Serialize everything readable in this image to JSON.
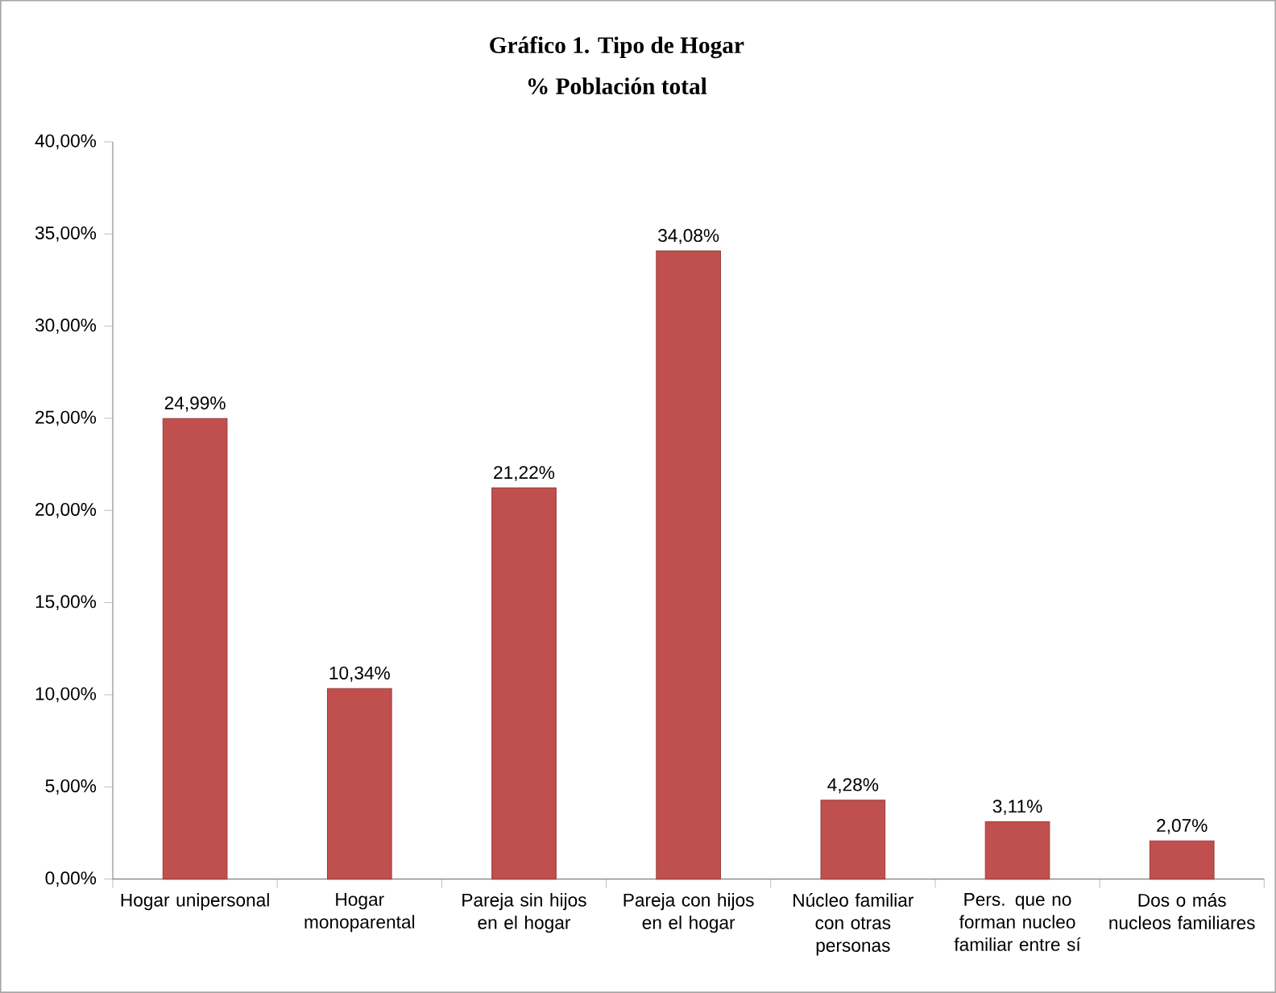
{
  "chart_data": {
    "type": "bar",
    "title": "Gráfico 1. Tipo de Hogar",
    "subtitle": "% Población total",
    "categories": [
      "Hogar unipersonal",
      "Hogar monoparental",
      "Pareja sin hijos en el hogar",
      "Pareja con hijos en el hogar",
      "Núcleo familiar con otras personas",
      "Pers. que no forman nucleo familiar entre sí",
      "Dos o más nucleos familiares"
    ],
    "values": [
      24.99,
      10.34,
      21.22,
      34.08,
      4.28,
      3.11,
      2.07
    ],
    "value_labels": [
      "24,99%",
      "10,34%",
      "21,22%",
      "34,08%",
      "4,28%",
      "3,11%",
      "2,07%"
    ],
    "color": "#c0504d",
    "ylim": [
      0,
      40
    ],
    "yticks": [
      {
        "value": 0,
        "label": "0,00%"
      },
      {
        "value": 5,
        "label": "5,00%"
      },
      {
        "value": 10,
        "label": "10,00%"
      },
      {
        "value": 15,
        "label": "15,00%"
      },
      {
        "value": 20,
        "label": "20,00%"
      },
      {
        "value": 25,
        "label": "25,00%"
      },
      {
        "value": 30,
        "label": "30,00%"
      },
      {
        "value": 35,
        "label": "35,00%"
      },
      {
        "value": 40,
        "label": "40,00%"
      }
    ],
    "grid": false
  }
}
